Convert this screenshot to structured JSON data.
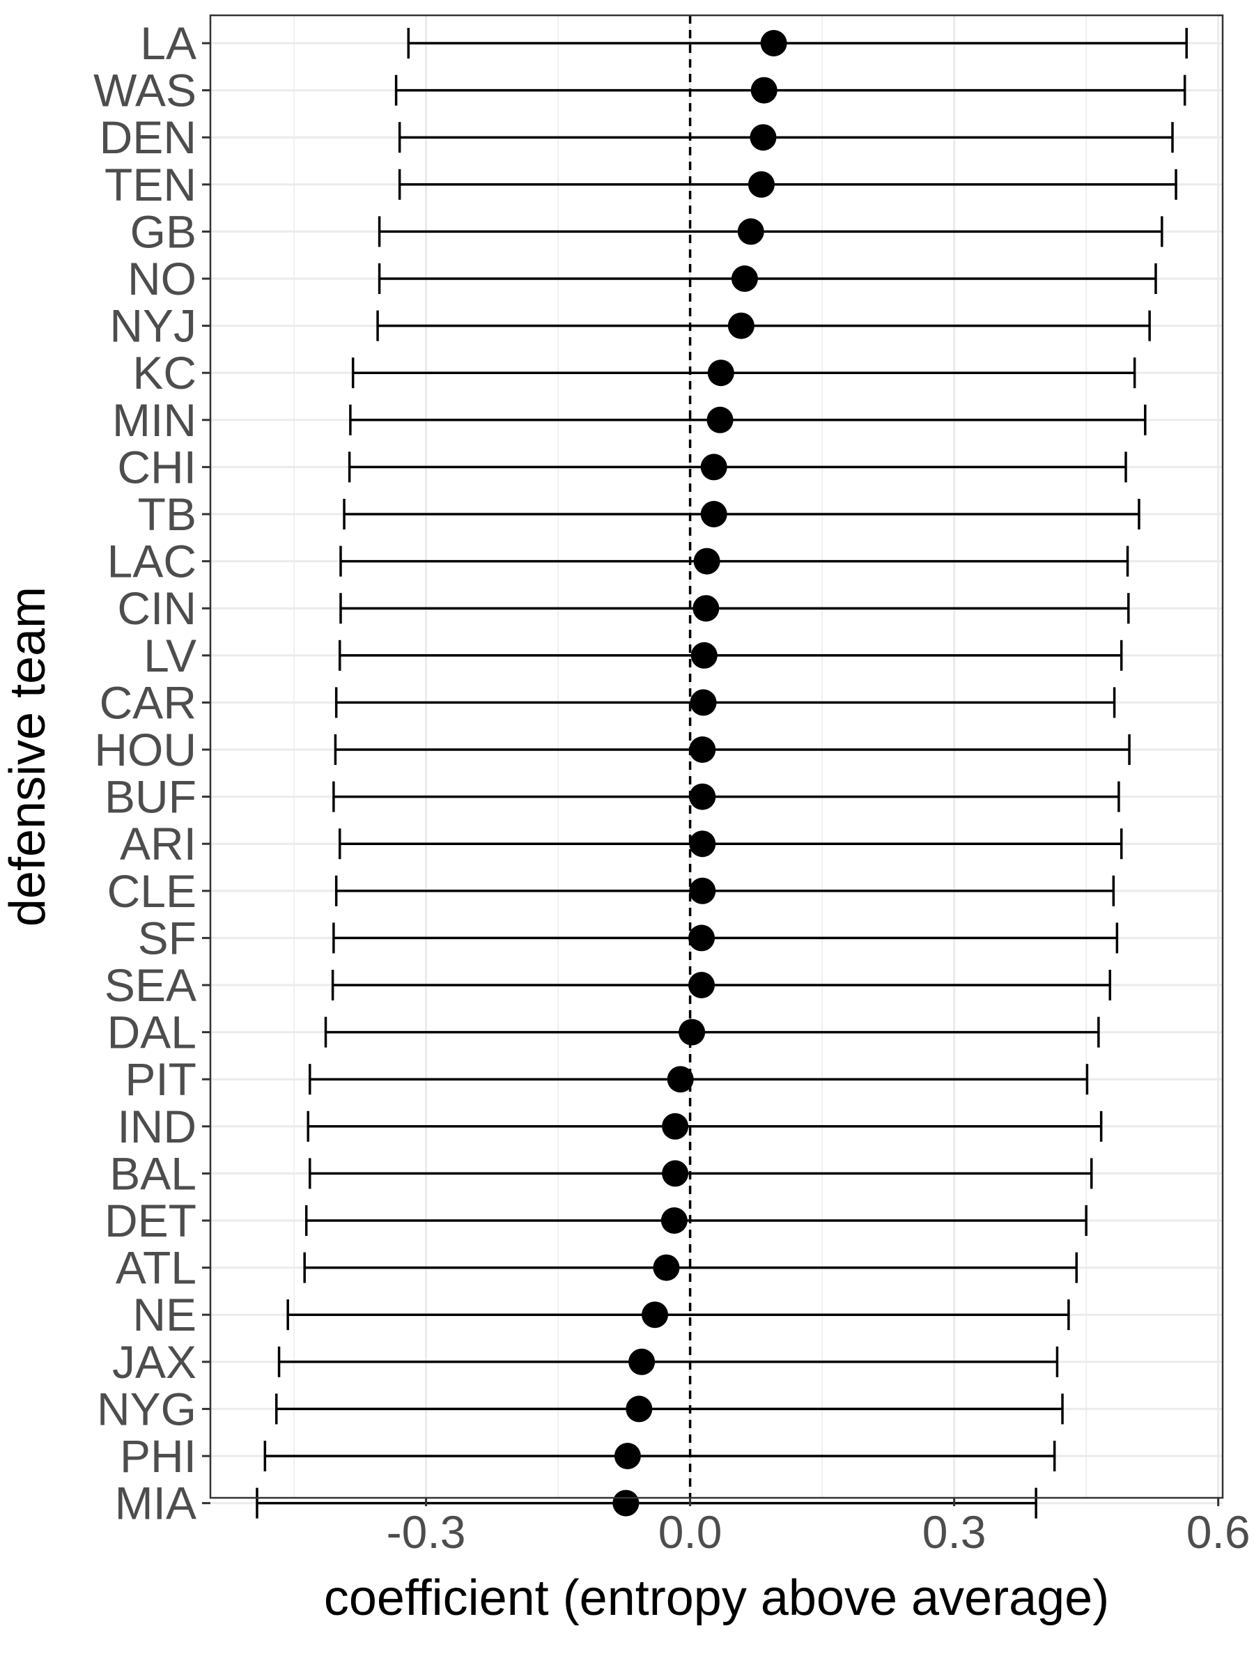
{
  "chart_data": {
    "type": "dot-errorbar",
    "xlabel": "coefficient (entropy above average)",
    "ylabel": "defensive team",
    "xlim": [
      -0.545,
      0.605
    ],
    "xticks": [
      -0.3,
      0.0,
      0.3,
      0.6
    ],
    "xtick_labels": [
      "-0.3",
      "0.0",
      "0.3",
      "0.6"
    ],
    "reference_line": {
      "x": 0.0,
      "style": "dashed"
    },
    "grid": true,
    "point_color": "#000000",
    "line_color": "#000000",
    "grid_color": "#ebebeb",
    "categories": [
      "LA",
      "WAS",
      "DEN",
      "TEN",
      "GB",
      "NO",
      "NYJ",
      "KC",
      "MIN",
      "CHI",
      "TB",
      "LAC",
      "CIN",
      "LV",
      "CAR",
      "HOU",
      "BUF",
      "ARI",
      "CLE",
      "SF",
      "SEA",
      "DAL",
      "PIT",
      "IND",
      "BAL",
      "DET",
      "ATL",
      "NE",
      "JAX",
      "NYG",
      "PHI",
      "MIA"
    ],
    "estimate": [
      0.095,
      0.084,
      0.083,
      0.081,
      0.069,
      0.062,
      0.058,
      0.035,
      0.034,
      0.027,
      0.027,
      0.019,
      0.018,
      0.016,
      0.015,
      0.014,
      0.014,
      0.014,
      0.014,
      0.013,
      0.013,
      0.002,
      -0.011,
      -0.017,
      -0.017,
      -0.018,
      -0.027,
      -0.04,
      -0.055,
      -0.058,
      -0.071,
      -0.073
    ],
    "lower": [
      -0.32,
      -0.334,
      -0.33,
      -0.33,
      -0.353,
      -0.353,
      -0.355,
      -0.383,
      -0.386,
      -0.387,
      -0.393,
      -0.397,
      -0.397,
      -0.398,
      -0.402,
      -0.403,
      -0.405,
      -0.398,
      -0.402,
      -0.405,
      -0.406,
      -0.414,
      -0.432,
      -0.434,
      -0.432,
      -0.436,
      -0.438,
      -0.457,
      -0.467,
      -0.47,
      -0.483,
      -0.492
    ],
    "upper": [
      0.564,
      0.562,
      0.548,
      0.552,
      0.536,
      0.529,
      0.522,
      0.505,
      0.517,
      0.495,
      0.51,
      0.497,
      0.498,
      0.49,
      0.482,
      0.499,
      0.487,
      0.49,
      0.481,
      0.485,
      0.477,
      0.464,
      0.451,
      0.467,
      0.456,
      0.45,
      0.439,
      0.43,
      0.417,
      0.423,
      0.414,
      0.393
    ]
  }
}
